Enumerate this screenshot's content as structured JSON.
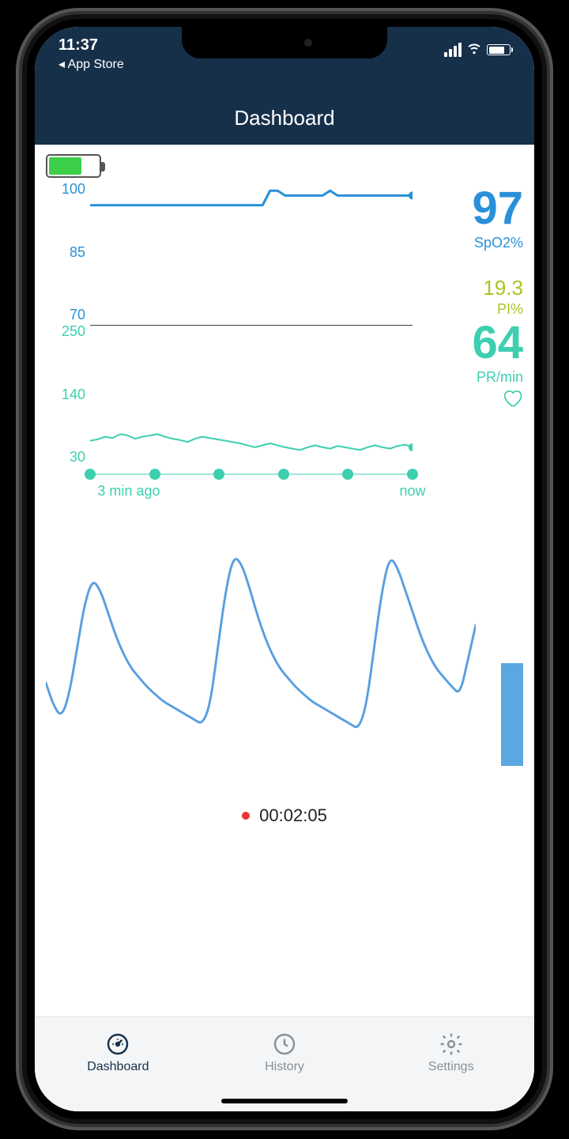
{
  "status_bar": {
    "time": "11:37",
    "back_label": "◂ App Store"
  },
  "header": {
    "title": "Dashboard"
  },
  "colors": {
    "header_bg": "#16304a",
    "spo2": "#2990d9",
    "pi": "#a7c522",
    "pr": "#3ecfb0",
    "wave": "#5a9fe0",
    "bar": "#5aa8df",
    "battery_fill": "#3ecf4a",
    "grid": "#e0e0e0"
  },
  "device": {
    "battery_pct": 62
  },
  "spo2_chart": {
    "type": "line",
    "y_ticks": [
      "100",
      "85",
      "70"
    ],
    "ylim": [
      70,
      100
    ],
    "color": "#2990d9",
    "line_width": 3,
    "data": [
      95,
      95,
      95,
      95,
      95,
      95,
      95,
      95,
      95,
      95,
      95,
      95,
      95,
      95,
      95,
      95,
      95,
      95,
      95,
      95,
      95,
      95,
      95,
      95,
      98,
      98,
      97,
      97,
      97,
      97,
      97,
      97,
      98,
      97,
      97,
      97,
      97,
      97,
      97,
      97,
      97,
      97,
      97,
      97
    ]
  },
  "spo2_reading": {
    "value": "97",
    "unit": "SpO2%",
    "color": "#2990d9"
  },
  "pi_reading": {
    "value": "19.3",
    "unit": "PI%",
    "color": "#a7c522"
  },
  "pr_chart": {
    "type": "line",
    "y_ticks": [
      "250",
      "140",
      "30"
    ],
    "ylim": [
      30,
      250
    ],
    "color": "#3ecfb0",
    "line_width": 2,
    "data": [
      72,
      74,
      78,
      76,
      82,
      80,
      75,
      78,
      80,
      82,
      78,
      75,
      73,
      70,
      75,
      78,
      76,
      74,
      72,
      70,
      68,
      65,
      62,
      65,
      68,
      65,
      62,
      60,
      58,
      62,
      65,
      62,
      60,
      64,
      62,
      60,
      58,
      62,
      65,
      62,
      60,
      64,
      66,
      62
    ]
  },
  "pr_reading": {
    "value": "64",
    "unit": "PR/min",
    "color": "#3ecfb0"
  },
  "time_axis": {
    "left_label": "3  min ago",
    "right_label": "now",
    "dots": 6,
    "color": "#3ecfb0"
  },
  "pleth_wave": {
    "type": "line",
    "color": "#5a9fe0",
    "line_width": 3,
    "data": [
      40,
      30,
      25,
      35,
      55,
      75,
      85,
      80,
      70,
      60,
      52,
      46,
      42,
      38,
      35,
      32,
      30,
      28,
      26,
      24,
      22,
      30,
      55,
      80,
      95,
      92,
      82,
      70,
      60,
      52,
      46,
      42,
      38,
      35,
      32,
      30,
      28,
      26,
      24,
      22,
      20,
      30,
      55,
      80,
      95,
      90,
      80,
      70,
      60,
      52,
      46,
      42,
      38,
      35,
      50,
      65
    ]
  },
  "recording": {
    "time": "00:02:05"
  },
  "tabs": {
    "dashboard": "Dashboard",
    "history": "History",
    "settings": "Settings"
  }
}
